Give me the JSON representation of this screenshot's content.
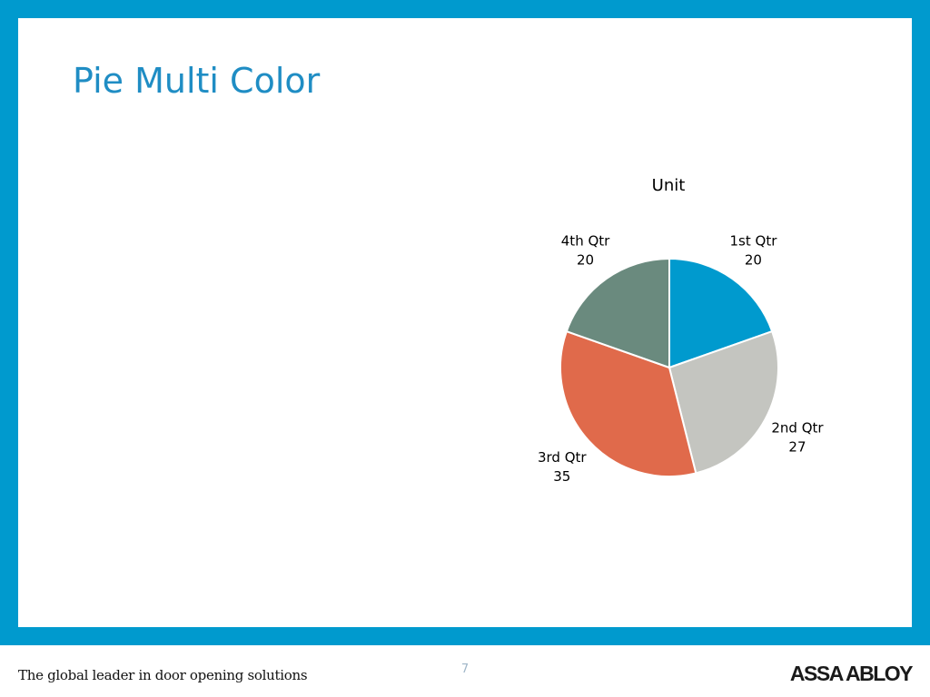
{
  "slide": {
    "title": "Pie Multi Color",
    "page_number": "7",
    "footer_tagline": "The global leader in door opening solutions",
    "brand_logo": "ASSA ABLOY"
  },
  "colors": {
    "frame": "#009ACE",
    "title": "#1F8DC4",
    "slice_border": "#ffffff"
  },
  "chart_data": {
    "type": "pie",
    "title": "Unit",
    "categories": [
      "1st Qtr",
      "2nd Qtr",
      "3rd Qtr",
      "4th Qtr"
    ],
    "values": [
      20,
      27,
      35,
      20
    ],
    "colors": [
      "#009ACE",
      "#C4C5C0",
      "#E06A4B",
      "#6A8A7E"
    ],
    "start_angle": "12 o'clock",
    "direction": "clockwise",
    "data_labels": "category name and value, outside end",
    "legend": "none"
  }
}
